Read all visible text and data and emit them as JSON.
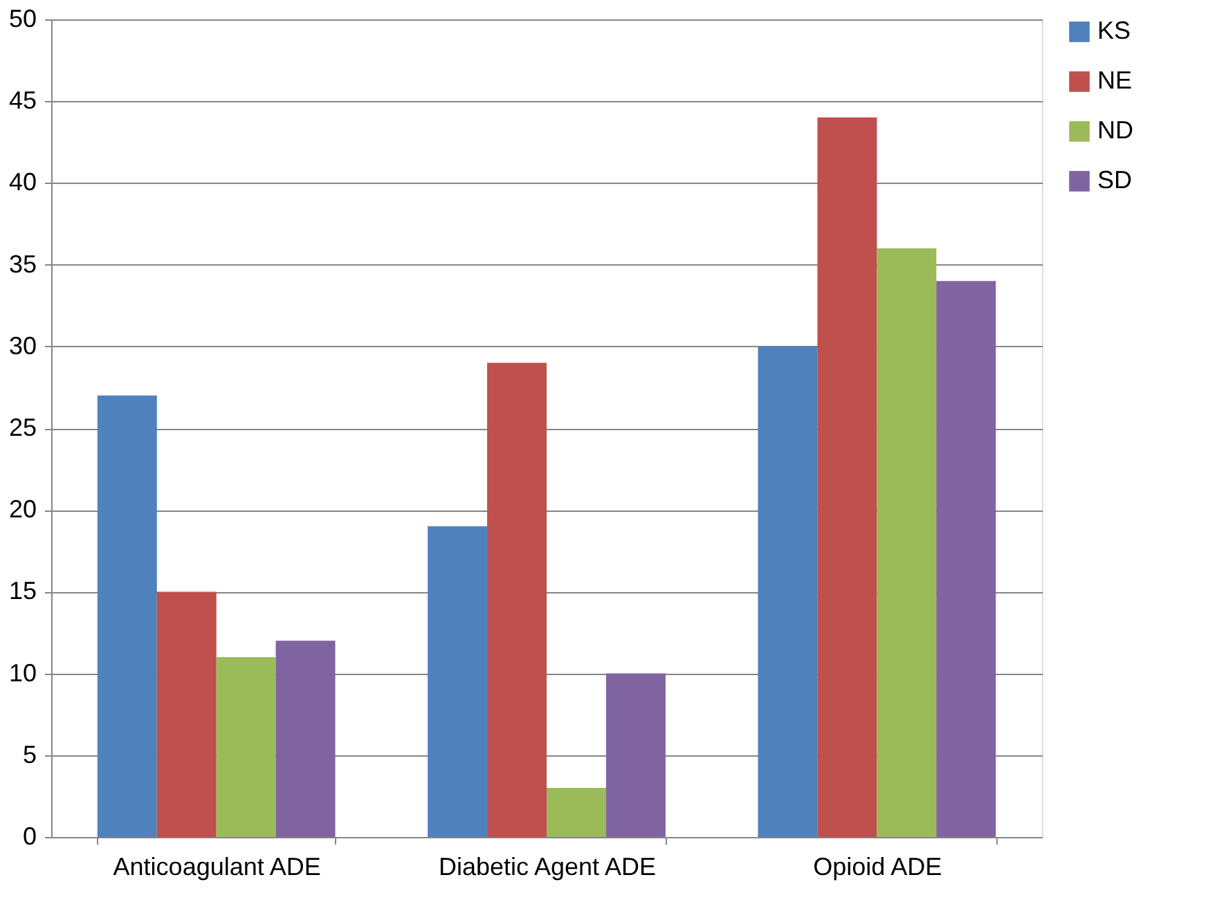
{
  "chart_data": {
    "type": "bar",
    "categories": [
      "Anticoagulant ADE",
      "Diabetic Agent ADE",
      "Opioid ADE"
    ],
    "series": [
      {
        "name": "KS",
        "color": "#4f81bd",
        "values": [
          27,
          19,
          30
        ]
      },
      {
        "name": "NE",
        "color": "#c0504d",
        "values": [
          15,
          29,
          44
        ]
      },
      {
        "name": "ND",
        "color": "#9bbb59",
        "values": [
          11,
          3,
          36
        ]
      },
      {
        "name": "SD",
        "color": "#8064a2",
        "values": [
          12,
          10,
          34
        ]
      }
    ],
    "ylim": [
      0,
      50
    ],
    "yticks": [
      0,
      5,
      10,
      15,
      20,
      25,
      30,
      35,
      40,
      45,
      50
    ],
    "grid": "y",
    "legend": "right"
  }
}
